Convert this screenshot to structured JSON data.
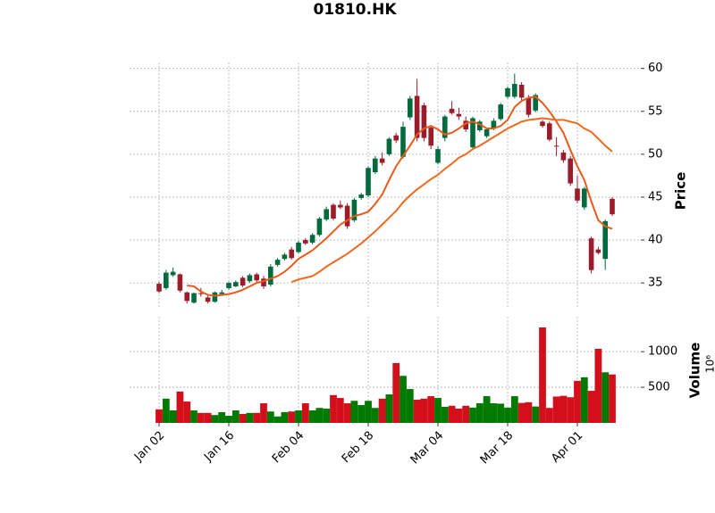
{
  "chart_data": {
    "type": "candlestick",
    "title": "01810.HK",
    "ylabel": "Price",
    "categories": [
      "Jan 02",
      null,
      null,
      null,
      null,
      null,
      null,
      null,
      null,
      null,
      "Jan 16",
      null,
      null,
      null,
      null,
      null,
      null,
      null,
      null,
      null,
      "Feb 04",
      null,
      null,
      null,
      null,
      null,
      null,
      null,
      null,
      null,
      "Feb 18",
      null,
      null,
      null,
      null,
      null,
      null,
      null,
      null,
      null,
      "Mar 04",
      null,
      null,
      null,
      null,
      null,
      null,
      null,
      null,
      null,
      "Mar 18",
      null,
      null,
      null,
      null,
      null,
      null,
      null,
      null,
      null,
      "Apr 01",
      null,
      null,
      null,
      null,
      null
    ],
    "open": [
      34.9,
      34.4,
      35.9,
      36.0,
      33.9,
      32.7,
      33.8,
      33.3,
      32.8,
      33.7,
      34.4,
      34.6,
      35.6,
      35.2,
      36.0,
      35.5,
      34.8,
      37.1,
      37.8,
      38.9,
      38.6,
      40.0,
      39.7,
      40.6,
      42.4,
      44.1,
      44.1,
      44.0,
      42.3,
      44.9,
      45.2,
      47.9,
      49.5,
      50.0,
      52.2,
      49.7,
      54.3,
      56.8,
      55.7,
      53.1,
      49.0,
      51.9,
      55.3,
      54.7,
      53.9,
      50.8,
      52.8,
      52.1,
      53.0,
      54.1,
      56.7,
      56.7,
      58.1,
      56.6,
      55.1,
      53.8,
      53.6,
      51.0,
      50.2,
      49.5,
      46.0,
      43.8,
      40.2,
      38.9,
      37.8,
      44.8
    ],
    "high": [
      35.1,
      36.5,
      36.8,
      36.1,
      34.0,
      33.9,
      34.4,
      33.5,
      34.0,
      34.2,
      35.1,
      35.3,
      35.8,
      36.1,
      36.2,
      35.8,
      37.2,
      37.9,
      38.5,
      39.2,
      39.9,
      40.2,
      40.8,
      42.7,
      43.9,
      44.3,
      44.6,
      44.3,
      44.9,
      45.5,
      48.6,
      49.8,
      50.2,
      52.0,
      52.5,
      53.8,
      56.8,
      58.8,
      56.0,
      53.4,
      50.9,
      54.6,
      56.2,
      55.4,
      54.4,
      54.4,
      54.0,
      53.1,
      54.2,
      56.0,
      57.9,
      59.4,
      58.4,
      56.9,
      57.1,
      54.0,
      53.8,
      52.0,
      50.5,
      49.8,
      47.5,
      46.2,
      40.4,
      39.2,
      42.4,
      45.0
    ],
    "low": [
      33.8,
      34.2,
      35.7,
      33.9,
      32.6,
      32.6,
      33.4,
      32.6,
      32.7,
      33.5,
      34.2,
      34.5,
      34.5,
      35.0,
      35.1,
      34.3,
      34.6,
      36.9,
      37.6,
      37.7,
      38.4,
      39.4,
      39.5,
      40.4,
      42.2,
      42.3,
      43.6,
      41.3,
      42.1,
      44.7,
      45.0,
      47.7,
      48.7,
      49.8,
      51.3,
      49.5,
      54.0,
      51.5,
      51.5,
      50.6,
      48.8,
      51.5,
      54.6,
      54.0,
      52.6,
      50.5,
      52.6,
      51.9,
      52.8,
      53.9,
      56.5,
      56.5,
      56.3,
      54.3,
      54.9,
      53.1,
      51.5,
      49.8,
      49.0,
      46.3,
      44.3,
      43.5,
      36.1,
      38.3,
      36.5,
      42.8
    ],
    "close": [
      34.0,
      36.2,
      36.3,
      34.1,
      32.9,
      33.8,
      33.7,
      32.8,
      33.9,
      33.9,
      35.0,
      35.1,
      34.7,
      35.9,
      35.3,
      34.6,
      36.9,
      37.7,
      38.3,
      37.9,
      39.7,
      39.6,
      40.6,
      42.5,
      43.6,
      42.5,
      43.8,
      41.6,
      44.7,
      45.3,
      48.4,
      49.5,
      49.0,
      51.8,
      51.6,
      53.2,
      56.5,
      51.9,
      51.9,
      51.0,
      50.6,
      54.4,
      54.8,
      54.4,
      52.9,
      54.2,
      53.8,
      52.9,
      53.9,
      55.8,
      57.7,
      58.2,
      56.6,
      54.6,
      56.9,
      53.3,
      51.7,
      50.9,
      49.3,
      46.6,
      44.6,
      46.0,
      36.5,
      38.5,
      42.2,
      43.0
    ],
    "up_color": "#006b3c",
    "down_color": "#9b1c2b",
    "ylim": [
      32.1,
      60.7
    ],
    "yticks": [
      35,
      40,
      45,
      50,
      55,
      60
    ],
    "grid": true,
    "moving_averages": [
      {
        "color": "#ea5a1c",
        "values": [
          null,
          null,
          null,
          null,
          34.7,
          34.6,
          34.0,
          33.6,
          33.5,
          33.6,
          33.7,
          33.9,
          34.2,
          34.6,
          35.0,
          35.2,
          35.5,
          35.8,
          36.3,
          37.0,
          37.8,
          38.3,
          38.8,
          39.5,
          40.2,
          41.0,
          41.8,
          42.3,
          42.8,
          43.0,
          43.3,
          44.2,
          45.3,
          47.0,
          48.6,
          49.8,
          51.0,
          52.3,
          53.0,
          53.3,
          52.9,
          52.3,
          52.5,
          53.0,
          53.6,
          53.8,
          53.5,
          53.0,
          53.0,
          53.3,
          54.0,
          55.5,
          56.2,
          56.6,
          56.7,
          56.0,
          55.0,
          53.8,
          52.5,
          50.5,
          48.6,
          47.0,
          44.5,
          42.3,
          41.6,
          41.3
        ]
      },
      {
        "color": "#f06a1e",
        "values": [
          null,
          null,
          null,
          null,
          null,
          null,
          null,
          null,
          null,
          null,
          null,
          null,
          null,
          null,
          null,
          null,
          null,
          null,
          null,
          35.1,
          35.4,
          35.6,
          35.8,
          36.3,
          36.9,
          37.4,
          37.9,
          38.4,
          39.0,
          39.6,
          40.3,
          41.0,
          41.8,
          42.6,
          43.4,
          44.4,
          45.2,
          45.9,
          46.5,
          47.1,
          47.6,
          48.3,
          48.9,
          49.6,
          50.0,
          50.6,
          51.0,
          51.5,
          52.0,
          52.5,
          53.0,
          53.4,
          53.8,
          54.0,
          54.1,
          54.2,
          54.1,
          54.0,
          54.0,
          53.8,
          53.6,
          53.0,
          52.6,
          51.8,
          51.0,
          50.3
        ]
      }
    ],
    "volume": {
      "ylabel": "Volume",
      "offset_label": "10⁶",
      "up_color": "#007a00",
      "down_color": "#d40f1c",
      "values": [
        190,
        340,
        175,
        440,
        300,
        175,
        140,
        140,
        110,
        150,
        100,
        175,
        125,
        140,
        140,
        275,
        160,
        90,
        150,
        160,
        175,
        275,
        175,
        210,
        200,
        390,
        350,
        275,
        310,
        250,
        310,
        210,
        340,
        400,
        840,
        660,
        475,
        325,
        340,
        375,
        350,
        225,
        240,
        200,
        240,
        215,
        275,
        375,
        275,
        270,
        215,
        375,
        280,
        290,
        230,
        1340,
        210,
        370,
        380,
        360,
        590,
        640,
        450,
        1040,
        710,
        680
      ],
      "ylim": [
        0,
        1490
      ],
      "yticks": [
        500,
        1000
      ]
    }
  }
}
